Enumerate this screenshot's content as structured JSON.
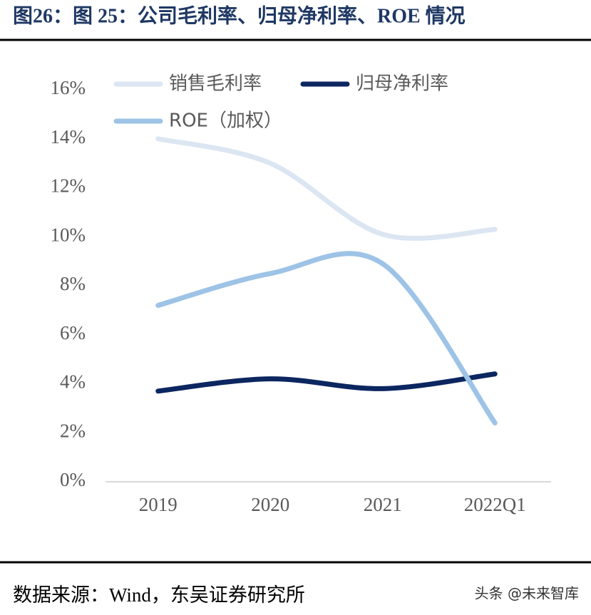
{
  "chart_data": {
    "type": "line",
    "title": "图26：图 25：公司毛利率、归母净利率、ROE 情况",
    "categories": [
      "2019",
      "2020",
      "2021",
      "2022Q1"
    ],
    "series": [
      {
        "name": "销售毛利率",
        "color": "#dce6f2",
        "values": [
          14.0,
          13.0,
          10.1,
          10.3
        ]
      },
      {
        "name": "归母净利率",
        "color": "#0c2660",
        "values": [
          3.7,
          4.2,
          3.8,
          4.4
        ]
      },
      {
        "name": "ROE（加权）",
        "color": "#9dc3e6",
        "values": [
          7.2,
          8.5,
          8.9,
          2.4
        ]
      }
    ],
    "ylim": [
      0,
      16
    ],
    "yticks": [
      {
        "value": 0,
        "label": "0%"
      },
      {
        "value": 2,
        "label": "2%"
      },
      {
        "value": 4,
        "label": "4%"
      },
      {
        "value": 6,
        "label": "6%"
      },
      {
        "value": 8,
        "label": "8%"
      },
      {
        "value": 10,
        "label": "10%"
      },
      {
        "value": 12,
        "label": "12%"
      },
      {
        "value": 14,
        "label": "14%"
      },
      {
        "value": 16,
        "label": "16%"
      }
    ],
    "grid": false,
    "legend": "upper left"
  },
  "source": "数据来源：Wind，东吴证券研究所",
  "watermark": "头条 @未来智库"
}
